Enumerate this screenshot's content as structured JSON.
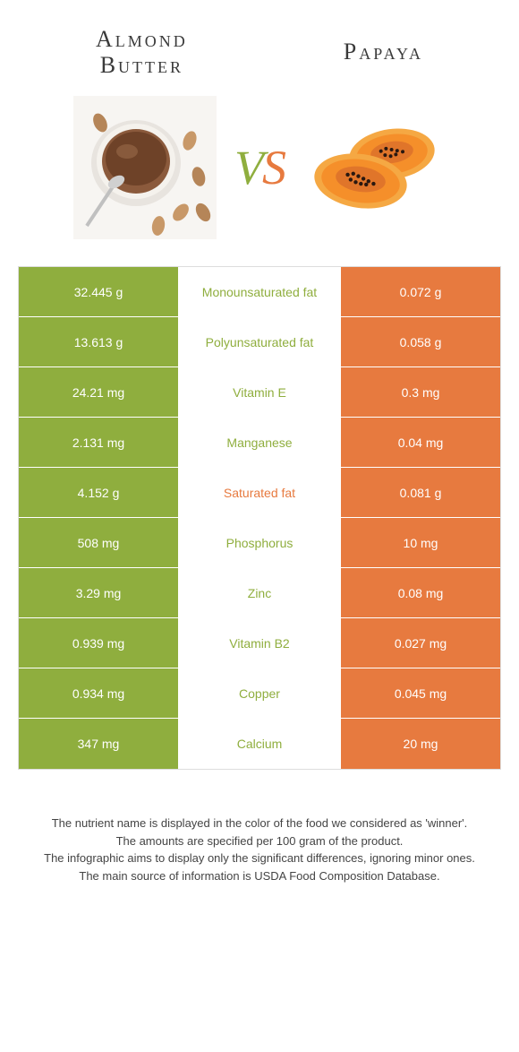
{
  "header": {
    "left_title_line1": "Almond",
    "left_title_line2": "Butter",
    "right_title": "Papaya",
    "vs_v": "V",
    "vs_s": "S"
  },
  "colors": {
    "left": "#8fae3e",
    "right": "#e77a3f",
    "mid_bg": "#ffffff",
    "saturated_fat_label": "#e77a3f",
    "default_label": "#8fae3e"
  },
  "table": {
    "rows": [
      {
        "left": "32.445 g",
        "label": "Monounsaturated fat",
        "right": "0.072 g",
        "label_color": "#8fae3e"
      },
      {
        "left": "13.613 g",
        "label": "Polyunsaturated fat",
        "right": "0.058 g",
        "label_color": "#8fae3e"
      },
      {
        "left": "24.21 mg",
        "label": "Vitamin E",
        "right": "0.3 mg",
        "label_color": "#8fae3e"
      },
      {
        "left": "2.131 mg",
        "label": "Manganese",
        "right": "0.04 mg",
        "label_color": "#8fae3e"
      },
      {
        "left": "4.152 g",
        "label": "Saturated fat",
        "right": "0.081 g",
        "label_color": "#e77a3f"
      },
      {
        "left": "508 mg",
        "label": "Phosphorus",
        "right": "10 mg",
        "label_color": "#8fae3e"
      },
      {
        "left": "3.29 mg",
        "label": "Zinc",
        "right": "0.08 mg",
        "label_color": "#8fae3e"
      },
      {
        "left": "0.939 mg",
        "label": "Vitamin B2",
        "right": "0.027 mg",
        "label_color": "#8fae3e"
      },
      {
        "left": "0.934 mg",
        "label": "Copper",
        "right": "0.045 mg",
        "label_color": "#8fae3e"
      },
      {
        "left": "347 mg",
        "label": "Calcium",
        "right": "20 mg",
        "label_color": "#8fae3e"
      }
    ]
  },
  "footer": {
    "line1": "The nutrient name is displayed in the color of the food we considered as 'winner'.",
    "line2": "The amounts are specified per 100 gram of the product.",
    "line3": "The infographic aims to display only the significant differences, ignoring minor ones.",
    "line4": "The main source of information is USDA Food Composition Database."
  }
}
